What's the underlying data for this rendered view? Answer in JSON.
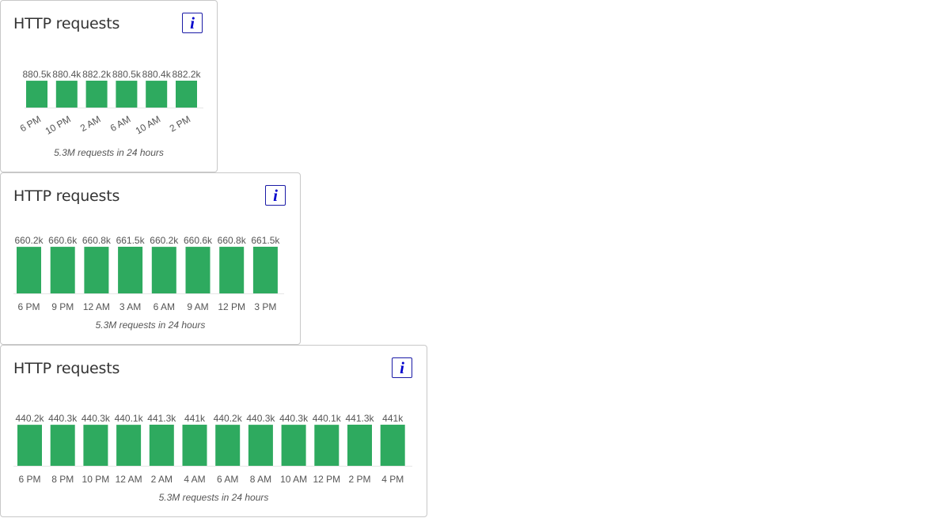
{
  "colors": {
    "bar": "#2eaa5f",
    "info_border": "#1a1aa6",
    "info_glyph": "#0000cc"
  },
  "info_icon": "info-icon",
  "cards": [
    {
      "title": "HTTP requests",
      "info_label": "i",
      "summary": "5.3M requests in 24 hours",
      "chart_data": {
        "type": "bar",
        "categories": [
          "6 PM",
          "10 PM",
          "2 AM",
          "6 AM",
          "10 AM",
          "2 PM"
        ],
        "values": [
          880.5,
          880.4,
          882.2,
          880.5,
          880.4,
          882.2
        ],
        "value_labels": [
          "880.5k",
          "880.4k",
          "882.2k",
          "880.5k",
          "880.4k",
          "882.2k"
        ],
        "unit": "k",
        "tick_rotation": "angled"
      }
    },
    {
      "title": "HTTP requests",
      "info_label": "i",
      "summary": "5.3M requests in 24 hours",
      "chart_data": {
        "type": "bar",
        "categories": [
          "6 PM",
          "9 PM",
          "12 AM",
          "3 AM",
          "6 AM",
          "9 AM",
          "12 PM",
          "3 PM"
        ],
        "values": [
          660.2,
          660.6,
          660.8,
          661.5,
          660.2,
          660.6,
          660.8,
          661.5
        ],
        "value_labels": [
          "660.2k",
          "660.6k",
          "660.8k",
          "661.5k",
          "660.2k",
          "660.6k",
          "660.8k",
          "661.5k"
        ],
        "unit": "k",
        "tick_rotation": "horizontal"
      }
    },
    {
      "title": "HTTP requests",
      "info_label": "i",
      "summary": "5.3M requests in 24 hours",
      "chart_data": {
        "type": "bar",
        "categories": [
          "6 PM",
          "8 PM",
          "10 PM",
          "12 AM",
          "2 AM",
          "4 AM",
          "6 AM",
          "8 AM",
          "10 AM",
          "12 PM",
          "2 PM",
          "4 PM"
        ],
        "values": [
          440.2,
          440.3,
          440.3,
          440.1,
          441.3,
          441,
          440.2,
          440.3,
          440.3,
          440.1,
          441.3,
          441
        ],
        "value_labels": [
          "440.2k",
          "440.3k",
          "440.3k",
          "440.1k",
          "441.3k",
          "441k",
          "440.2k",
          "440.3k",
          "440.3k",
          "440.1k",
          "441.3k",
          "441k"
        ],
        "unit": "k",
        "tick_rotation": "horizontal"
      }
    }
  ]
}
